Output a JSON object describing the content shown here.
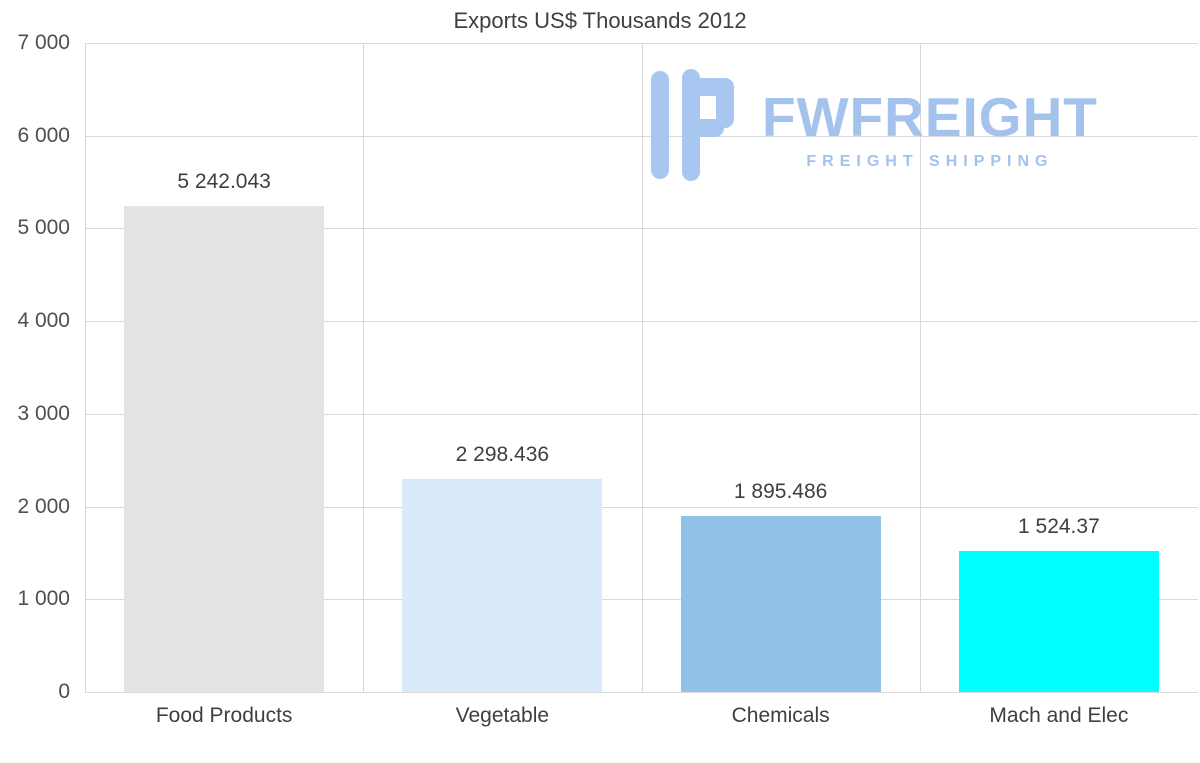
{
  "chart_data": {
    "type": "bar",
    "title": "Exports US$ Thousands 2012",
    "categories": [
      "Food Products",
      "Vegetable",
      "Chemicals",
      "Mach and Elec"
    ],
    "values": [
      5242.043,
      2298.436,
      1895.486,
      1524.37
    ],
    "value_labels": [
      "5 242.043",
      "2 298.436",
      "1 895.486",
      "1 524.37"
    ],
    "bar_colors": [
      "#e4e4e4",
      "#daeafa",
      "#8fc2e6",
      "#00ffff"
    ],
    "xlabel": "",
    "ylabel": "",
    "ylim": [
      0,
      7000
    ],
    "ytick_interval": 1000,
    "ytick_labels": [
      "0",
      "1 000",
      "2 000",
      "3 000",
      "4 000",
      "5 000",
      "6 000",
      "7 000"
    ],
    "grid": true,
    "legend": "none"
  },
  "watermark": {
    "brand": "FWFREIGHT",
    "tagline": "FREIGHT SHIPPING",
    "color": "#a3c2ec"
  },
  "colors": {
    "title_text": "#3f3f3f",
    "axis_text": "#4f4f4f",
    "gridline": "#d9d9d9",
    "background": "#ffffff"
  }
}
